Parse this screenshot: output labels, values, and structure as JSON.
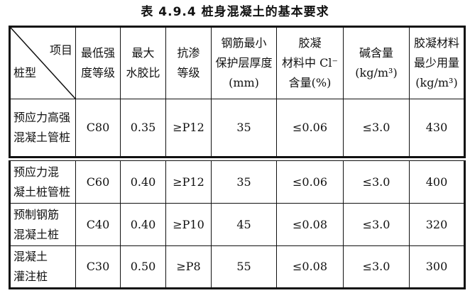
{
  "title": "表 4.9.4   桩身混凝土的基本要求",
  "header": {
    "corner_top": "项目",
    "corner_bottom": "桩型",
    "columns": [
      [
        "最低强",
        "度等级"
      ],
      [
        "最大",
        "水胶比"
      ],
      [
        "抗渗",
        "等级"
      ],
      [
        "钢筋最小",
        "保护层厚度",
        "(mm)"
      ],
      [
        "胶凝",
        "材料中 Cl⁻",
        "含量(%)"
      ],
      [
        "碱含量",
        "(kg/m³)"
      ],
      [
        "胶凝材料",
        "最少用量",
        "(kg/m³)"
      ]
    ]
  },
  "rows": [
    {
      "name": [
        "预应力高强",
        "混凝土管桩"
      ],
      "values": [
        "C80",
        "0.35",
        "≥P12",
        "35",
        "≤0.06",
        "≤3.0",
        "430"
      ]
    },
    {
      "name": [
        "预应力混",
        "凝土桩管桩"
      ],
      "values": [
        "C60",
        "0.40",
        "≥P12",
        "35",
        "≤0.06",
        "≤3.0",
        "400"
      ]
    },
    {
      "name": [
        "预制钢筋",
        "混凝土桩"
      ],
      "values": [
        "C40",
        "0.40",
        "≥P10",
        "45",
        "≤0.08",
        "≤3.0",
        "320"
      ]
    },
    {
      "name": [
        "混凝土",
        "灌注桩"
      ],
      "values": [
        "C30",
        "0.50",
        "≥P8",
        "55",
        "≤0.08",
        "≤3.0",
        "300"
      ]
    }
  ]
}
